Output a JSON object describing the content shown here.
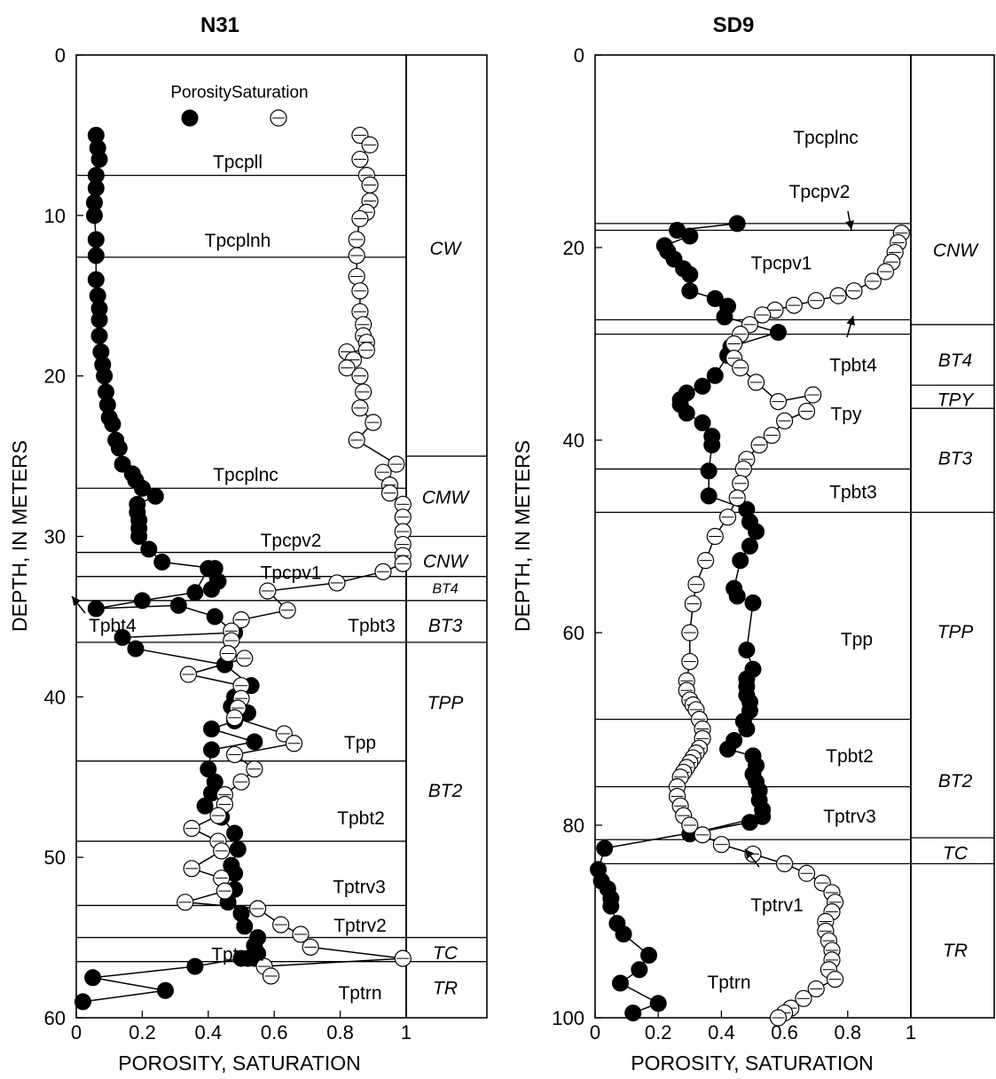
{
  "colors": {
    "porosity": "#000000",
    "saturation": "#ffffff",
    "line": "#000000"
  },
  "legend": {
    "porosity_label": "Porosity",
    "saturation_label": "Saturation"
  },
  "chart_data": [
    {
      "type": "scatter",
      "title": "N31",
      "xlabel": "POROSITY, SATURATION",
      "ylabel": "DEPTH, IN METERS",
      "xlim": [
        0,
        1
      ],
      "ylim": [
        0,
        60
      ],
      "y_inverted": true,
      "x_ticks": [
        "0",
        "0.2",
        "0.4",
        "0.6",
        "0.8",
        "1"
      ],
      "y_ticks": [
        "0",
        "10",
        "20",
        "30",
        "40",
        "50",
        "60"
      ],
      "legend_position": "top",
      "unit_boundaries": [
        7.5,
        12.6,
        27,
        31,
        32.5,
        34,
        36.6,
        44,
        49,
        53,
        55,
        56.5
      ],
      "units": [
        {
          "name": "Tpcpll",
          "depth": 6.6
        },
        {
          "name": "Tpcplnh",
          "depth": 11.5
        },
        {
          "name": "Tpcplnc",
          "depth": 26.1
        },
        {
          "name": "Tpcpv2",
          "depth": 30.2
        },
        {
          "name": "Tpcpv1",
          "depth": 32.2
        },
        {
          "name": "Tpbt4",
          "depth": 35.5
        },
        {
          "name": "Tpbt3",
          "depth": 35.5
        },
        {
          "name": "Tpp",
          "depth": 42.8
        },
        {
          "name": "Tpbt2",
          "depth": 47.5
        },
        {
          "name": "Tptrv3",
          "depth": 51.8
        },
        {
          "name": "Tptrv2",
          "depth": 54.2
        },
        {
          "name": "Tptrv1",
          "depth": 56.0
        },
        {
          "name": "Tptrn",
          "depth": 58.4
        }
      ],
      "zone_boundaries": [
        25,
        30,
        32.5,
        34,
        36.6,
        55,
        56.5
      ],
      "zones": [
        {
          "name": "CW",
          "depth": 12
        },
        {
          "name": "CMW",
          "depth": 27.5
        },
        {
          "name": "CNW",
          "depth": 31.5
        },
        {
          "name": "BT4",
          "depth": 33.2
        },
        {
          "name": "BT3",
          "depth": 35.5
        },
        {
          "name": "TPP",
          "depth": 40.3
        },
        {
          "name": "BT2",
          "depth": 45.8
        },
        {
          "name": "TC",
          "depth": 55.9
        },
        {
          "name": "TR",
          "depth": 58.1
        }
      ],
      "series": [
        {
          "name": "Porosity",
          "x": [
            0.06,
            0.065,
            0.07,
            0.06,
            0.06,
            0.055,
            0.055,
            0.06,
            0.06,
            0.06,
            0.065,
            0.07,
            0.07,
            0.07,
            0.075,
            0.08,
            0.085,
            0.09,
            0.095,
            0.1,
            0.11,
            0.12,
            0.13,
            0.14,
            0.17,
            0.18,
            0.2,
            0.24,
            0.185,
            0.185,
            0.19,
            0.19,
            0.19,
            0.22,
            0.26,
            0.42,
            0.43,
            0.41,
            0.4,
            0.36,
            0.2,
            0.06,
            0.31,
            0.42,
            0.48,
            0.14,
            0.18,
            0.45,
            0.53,
            0.48,
            0.47,
            0.52,
            0.48,
            0.41,
            0.54,
            0.41,
            0.4,
            0.42,
            0.41,
            0.39,
            0.44,
            0.48,
            0.49,
            0.47,
            0.48,
            0.48,
            0.46,
            0.5,
            0.51,
            0.55,
            0.54,
            0.55,
            0.54,
            0.52,
            0.5,
            0.36,
            0.05,
            0.27,
            0.02
          ],
          "y": [
            5,
            5.8,
            6.5,
            7.5,
            8.3,
            9.2,
            10,
            11.5,
            12.5,
            14,
            15,
            15.8,
            16.5,
            17.5,
            18.5,
            19.3,
            20,
            21,
            21.8,
            22.6,
            23,
            24,
            24.5,
            25.5,
            26.1,
            26.5,
            27,
            27.5,
            28,
            28.5,
            29,
            29.5,
            30,
            30.8,
            31.6,
            32,
            32.8,
            33.3,
            32,
            33.5,
            34,
            34.5,
            34.3,
            35,
            36,
            36.3,
            37,
            38,
            39.3,
            40,
            40.6,
            41,
            41.5,
            42,
            42.8,
            43.3,
            44.5,
            45.3,
            46,
            46.8,
            47.5,
            48.5,
            49.5,
            50.5,
            51,
            52,
            52.8,
            53.5,
            54.3,
            55,
            55.5,
            56,
            56.3,
            56.3,
            56.3,
            56.8,
            57.5,
            58.3,
            59
          ]
        },
        {
          "name": "Saturation",
          "x": [
            0.86,
            0.89,
            0.86,
            0.88,
            0.89,
            0.89,
            0.88,
            0.86,
            0.85,
            0.85,
            0.85,
            0.86,
            0.86,
            0.87,
            0.87,
            0.88,
            0.88,
            0.82,
            0.84,
            0.82,
            0.86,
            0.87,
            0.86,
            0.9,
            0.85,
            0.97,
            0.93,
            0.95,
            0.95,
            0.99,
            0.99,
            0.99,
            0.99,
            0.99,
            0.99,
            0.93,
            0.79,
            0.58,
            0.64,
            0.5,
            0.47,
            0.47,
            0.46,
            0.51,
            0.34,
            0.5,
            0.5,
            0.49,
            0.48,
            0.63,
            0.66,
            0.48,
            0.54,
            0.5,
            0.45,
            0.45,
            0.43,
            0.35,
            0.43,
            0.44,
            0.35,
            0.44,
            0.45,
            0.33,
            0.55,
            0.62,
            0.68,
            0.71,
            0.99,
            0.57,
            0.59
          ],
          "y": [
            5,
            5.6,
            6.5,
            7.5,
            8.1,
            9.1,
            9.8,
            10.2,
            11.5,
            12.5,
            13.8,
            14.7,
            16,
            16.8,
            17.5,
            17.9,
            18.4,
            18.5,
            19,
            19.5,
            20,
            21,
            22,
            22.9,
            24,
            25.5,
            26,
            26.8,
            27.3,
            28,
            28.8,
            29.7,
            30.5,
            31.2,
            31.7,
            32.2,
            32.9,
            33.4,
            34.6,
            35.2,
            35.9,
            36.5,
            37.3,
            37.6,
            38.6,
            39.3,
            40.1,
            40.7,
            41.3,
            42.3,
            42.9,
            43.6,
            44.5,
            45.3,
            46.1,
            46.7,
            47.4,
            48.2,
            49,
            49.6,
            50.7,
            51.3,
            52.1,
            52.8,
            53.2,
            54.2,
            54.8,
            55.6,
            56.3,
            56.8,
            57.4
          ]
        }
      ]
    },
    {
      "type": "scatter",
      "title": "SD9",
      "xlabel": "POROSITY, SATURATION",
      "ylabel": "DEPTH, IN METERS",
      "xlim": [
        0,
        1
      ],
      "ylim": [
        0,
        100
      ],
      "y_inverted": true,
      "x_ticks": [
        "0",
        "0.2",
        "0.4",
        "0.6",
        "0.8",
        "1"
      ],
      "y_ticks": [
        "0",
        "20",
        "40",
        "60",
        "80",
        "100"
      ],
      "unit_boundaries": [
        17.5,
        18.2,
        27.5,
        29,
        43,
        47.5,
        69,
        76,
        81.5,
        84
      ],
      "units": [
        {
          "name": "Tpcplnc",
          "depth": 8.5
        },
        {
          "name": "Tpcpv2",
          "depth": 14.1
        },
        {
          "name": "Tpcpv1",
          "depth": 21.5
        },
        {
          "name": "Tpbt4",
          "depth": 32.1
        },
        {
          "name": "Tpy",
          "depth": 37.2
        },
        {
          "name": "Tpbt3",
          "depth": 45.3
        },
        {
          "name": "Tpp",
          "depth": 60.6
        },
        {
          "name": "Tpbt2",
          "depth": 72.7
        },
        {
          "name": "Tptrv3",
          "depth": 79.0
        },
        {
          "name": "Tptrv1",
          "depth": 88.2
        },
        {
          "name": "Tptrn",
          "depth": 96.2
        }
      ],
      "zone_boundaries": [
        28,
        34.3,
        36.7,
        47.5,
        81.3,
        84
      ],
      "zones": [
        {
          "name": "CNW",
          "depth": 20.2
        },
        {
          "name": "BT4",
          "depth": 31.6
        },
        {
          "name": "TPY",
          "depth": 35.7
        },
        {
          "name": "BT3",
          "depth": 41.8
        },
        {
          "name": "TPP",
          "depth": 59.8
        },
        {
          "name": "BT2",
          "depth": 75.3
        },
        {
          "name": "TC",
          "depth": 82.8
        },
        {
          "name": "TR",
          "depth": 92.9
        }
      ],
      "series": [
        {
          "name": "Porosity",
          "x": [
            0.45,
            0.26,
            0.3,
            0.22,
            0.23,
            0.25,
            0.28,
            0.3,
            0.3,
            0.38,
            0.42,
            0.41,
            0.58,
            0.43,
            0.42,
            0.38,
            0.34,
            0.29,
            0.27,
            0.27,
            0.29,
            0.34,
            0.37,
            0.37,
            0.36,
            0.36,
            0.48,
            0.49,
            0.51,
            0.49,
            0.46,
            0.44,
            0.45,
            0.5,
            0.48,
            0.5,
            0.48,
            0.48,
            0.48,
            0.49,
            0.49,
            0.47,
            0.48,
            0.44,
            0.42,
            0.5,
            0.51,
            0.5,
            0.51,
            0.52,
            0.52,
            0.53,
            0.53,
            0.3,
            0.49,
            0.03,
            0.01,
            0.02,
            0.04,
            0.05,
            0.05,
            0.07,
            0.09,
            0.17,
            0.14,
            0.08,
            0.2,
            0.12
          ],
          "y": [
            17.5,
            18.2,
            18.8,
            19.8,
            20.4,
            21.2,
            22.2,
            22.8,
            24.5,
            25.3,
            26.1,
            27.2,
            28.8,
            30.3,
            31.2,
            33.3,
            34.4,
            35.1,
            35.8,
            36.3,
            37.2,
            38.2,
            39.6,
            40.5,
            43.2,
            45.8,
            47.2,
            48.5,
            49.5,
            51,
            52.5,
            55.4,
            56.2,
            56.9,
            61.8,
            63.8,
            64.8,
            65.6,
            66.5,
            67.2,
            68.1,
            69.2,
            70,
            71.2,
            72.1,
            72.8,
            73.8,
            74.7,
            75.5,
            76.4,
            77.4,
            78.4,
            79.1,
            80.9,
            79.7,
            82.4,
            84.6,
            85.8,
            86.6,
            87.6,
            88.4,
            90.2,
            91.3,
            93.5,
            95,
            96.4,
            98.5,
            99.5
          ]
        },
        {
          "name": "Saturation",
          "x": [
            0.97,
            0.96,
            0.95,
            0.94,
            0.92,
            0.88,
            0.82,
            0.77,
            0.7,
            0.63,
            0.57,
            0.53,
            0.49,
            0.46,
            0.44,
            0.44,
            0.46,
            0.51,
            0.58,
            0.69,
            0.67,
            0.6,
            0.56,
            0.52,
            0.48,
            0.47,
            0.46,
            0.45,
            0.42,
            0.38,
            0.35,
            0.32,
            0.31,
            0.3,
            0.3,
            0.29,
            0.29,
            0.3,
            0.31,
            0.32,
            0.33,
            0.34,
            0.34,
            0.33,
            0.32,
            0.31,
            0.3,
            0.29,
            0.28,
            0.27,
            0.26,
            0.26,
            0.27,
            0.28,
            0.3,
            0.34,
            0.4,
            0.5,
            0.6,
            0.67,
            0.72,
            0.75,
            0.76,
            0.75,
            0.73,
            0.73,
            0.74,
            0.75,
            0.75,
            0.74,
            0.76,
            0.7,
            0.66,
            0.62,
            0.6,
            0.58
          ],
          "y": [
            18.5,
            19.5,
            20.5,
            21.5,
            22.5,
            23.5,
            24.5,
            25,
            25.5,
            26,
            26.5,
            27,
            28,
            29,
            30,
            31.5,
            32.5,
            34,
            36,
            35.3,
            37,
            38,
            39.5,
            40.5,
            42,
            43,
            44.5,
            46,
            48,
            50,
            52.5,
            55,
            57,
            60,
            63,
            65,
            66,
            67,
            67.5,
            68,
            69,
            70,
            71,
            72,
            72.5,
            73,
            73.5,
            74,
            74.5,
            75,
            76,
            77,
            78,
            79,
            80,
            81,
            82,
            83,
            84,
            85,
            86,
            87,
            88,
            89,
            90,
            91,
            92,
            93,
            94,
            95,
            96,
            97,
            98,
            99,
            99.5,
            100
          ]
        }
      ]
    }
  ]
}
